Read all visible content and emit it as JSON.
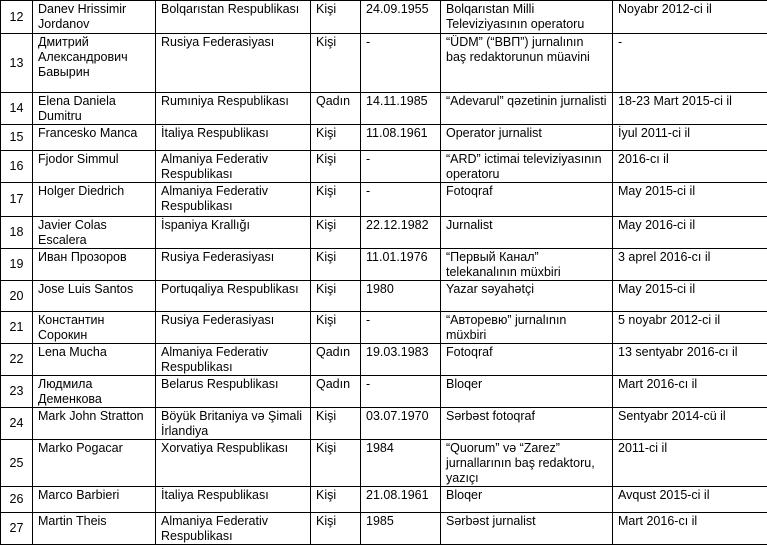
{
  "table": {
    "rows": [
      [
        "12",
        "Danev Hrissimir Jordanov",
        "Bolqarıstan Respublikası",
        "Kişi",
        "24.09.1955",
        "Bolqarıstan Milli Televiziyasının operatoru",
        "Noyabr 2012-ci il"
      ],
      [
        "13",
        "Дмитрий Александрович Бавырин",
        "Rusiya Federasiyası",
        "Kişi",
        "-",
        "“ÜDM” (“ВВП”) jurnalının baş redaktorunun müavini",
        "-"
      ],
      [
        "14",
        "Elena Daniela Dumitru",
        "Rumıniya Respublikası",
        "Qadın",
        "14.11.1985",
        "“Adevarul” qəzetinin jurnalisti",
        "18-23 Mart 2015-ci il"
      ],
      [
        "15",
        "Francesko Manca",
        "İtaliya Respublikası",
        "Kişi",
        "11.08.1961",
        "Operator jurnalist",
        "İyul 2011-ci il"
      ],
      [
        "16",
        "Fjodor Simmul",
        "Almaniya Federativ Respublikası",
        "Kişi",
        "-",
        "“ARD” ictimai televiziyasının operatoru",
        "2016-cı il"
      ],
      [
        "17",
        "Holger Diedrich",
        "Almaniya Federativ Respublikası",
        "Kişi",
        "-",
        "Fotoqraf",
        "May 2015-ci il"
      ],
      [
        "18",
        "Javier Colas Escalera",
        "İspaniya Krallığı",
        "Kişi",
        "22.12.1982",
        "Jurnalist",
        "May 2016-ci il"
      ],
      [
        "19",
        "Иван Прозоров",
        "Rusiya Federasiyası",
        "Kişi",
        "11.01.1976",
        "“Первый Канал” telekanalının müxbiri",
        "3 aprel 2016-cı il"
      ],
      [
        "20",
        "Jose Luis Santos",
        "Portuqaliya Respublikası",
        "Kişi",
        "1980",
        "Yazar səyahətçi",
        "May 2015-ci il"
      ],
      [
        "21",
        "Константин Сорокин",
        "Rusiya Federasiyası",
        "Kişi",
        "-",
        "“Авторевю” jurnalının müxbiri",
        "5 noyabr 2012-ci il"
      ],
      [
        "22",
        "Lena Mucha",
        "Almaniya Federativ Respublikası",
        "Qadın",
        "19.03.1983",
        "Fotoqraf",
        "13 sentyabr 2016-cı il"
      ],
      [
        "23",
        "Людмила Деменкова",
        "Belarus Respublikası",
        "Qadın",
        "-",
        "Bloqer",
        "Mart 2016-cı il"
      ],
      [
        "24",
        "Mark John Stratton",
        "Böyük Britaniya və Şimali İrlandiya",
        "Kişi",
        "03.07.1970",
        "Sərbəst fotoqraf",
        "Sentyabr 2014-cü il"
      ],
      [
        "25",
        "Marko Pogacar",
        "Xorvatiya Respublikası",
        "Kişi",
        "1984",
        "“Quorum” və “Zarez” jurnallarının baş redaktoru, yazıçı",
        "2011-ci il"
      ],
      [
        "26",
        "Marco Barbieri",
        "İtaliya Respublikası",
        "Kişi",
        "21.08.1961",
        "Bloqer",
        "Avqust 2015-ci il"
      ],
      [
        "27",
        "Martin Theis",
        "Almaniya Federativ Respublikası",
        "Kişi",
        "1985",
        "Sərbəst jurnalist",
        "Mart 2016-cı il"
      ]
    ]
  }
}
